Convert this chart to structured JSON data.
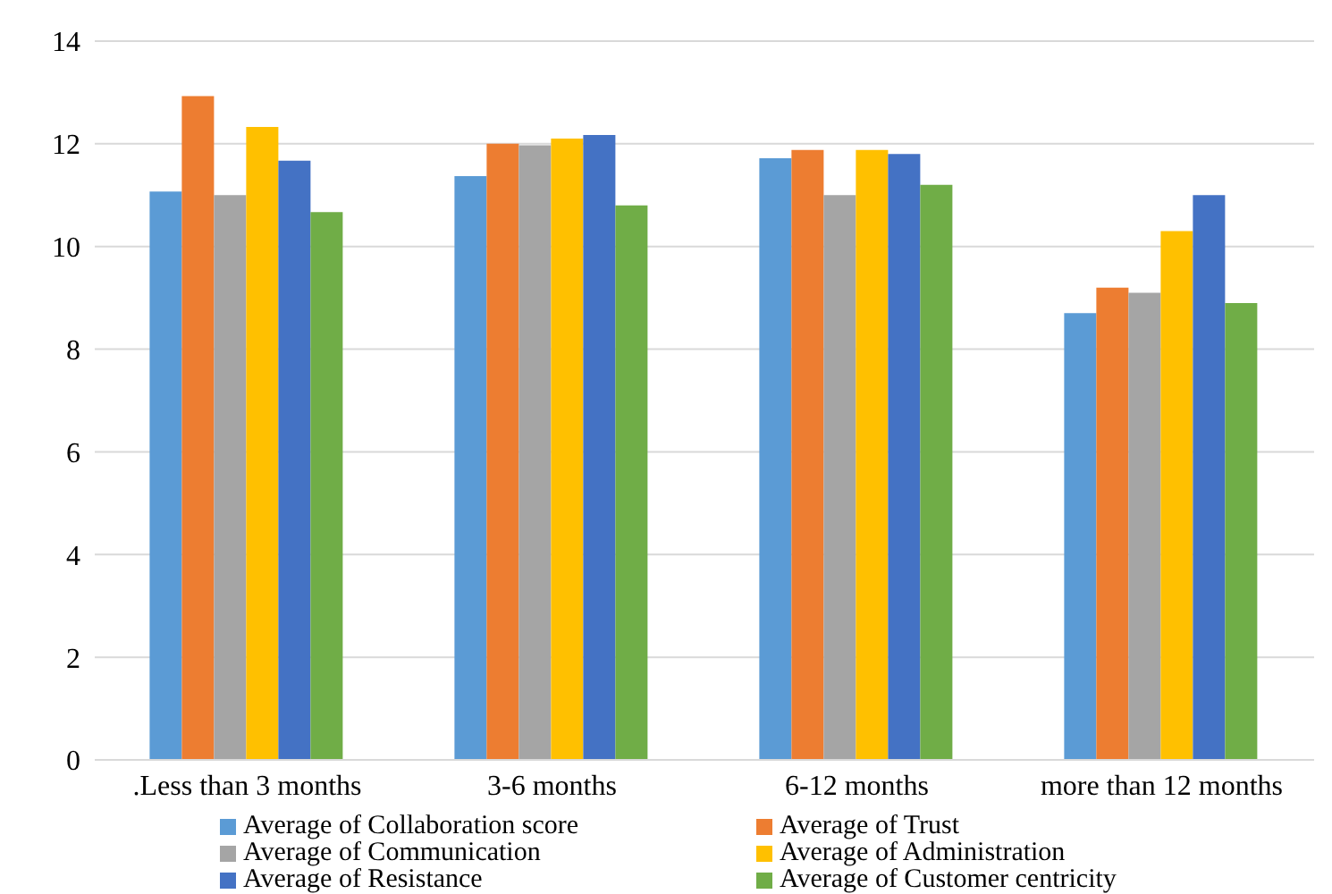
{
  "chart_data": {
    "type": "bar",
    "categories": [
      ".Less than 3 months",
      "3-6 months",
      "6-12 months",
      "more than 12 months"
    ],
    "series": [
      {
        "name": "Average of Collaboration score",
        "color": "#5b9bd5",
        "values": [
          11.07,
          11.37,
          11.72,
          8.7
        ]
      },
      {
        "name": "Average of Trust",
        "color": "#ed7d31",
        "values": [
          12.93,
          12.0,
          11.88,
          9.2
        ]
      },
      {
        "name": "Average of Communication",
        "color": "#a5a5a5",
        "values": [
          11.0,
          11.97,
          11.0,
          9.1
        ]
      },
      {
        "name": "Average of Administration",
        "color": "#ffc000",
        "values": [
          12.33,
          12.1,
          11.88,
          10.3
        ]
      },
      {
        "name": "Average of Resistance",
        "color": "#4472c4",
        "values": [
          11.67,
          12.17,
          11.8,
          11.0
        ]
      },
      {
        "name": "Average of Customer centricity",
        "color": "#70ad47",
        "values": [
          10.67,
          10.8,
          11.2,
          8.9
        ]
      }
    ],
    "ylim": [
      0,
      14
    ],
    "yticks": [
      0,
      2,
      4,
      6,
      8,
      10,
      12,
      14
    ],
    "grid": "y",
    "legend": "bottom"
  }
}
